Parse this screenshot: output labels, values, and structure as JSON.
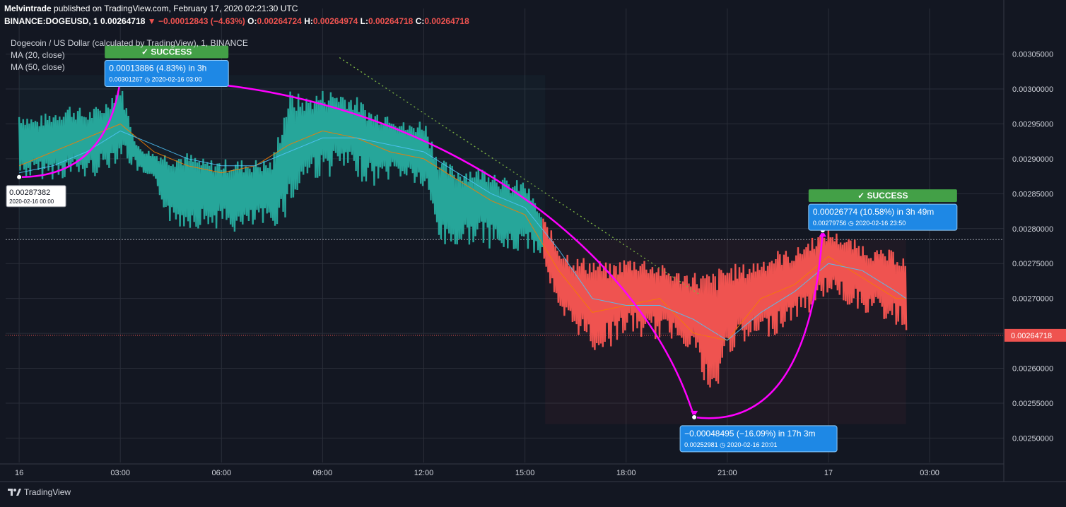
{
  "header": {
    "author": "Melvintrade",
    "published_text": "published on TradingView.com, February 17, 2020 02:21:30 UTC"
  },
  "ohlc": {
    "symbol": "BINANCE:DOGEUSD, 1",
    "last": "0.00264718",
    "change": "▼ −0.00012843 (−4.63%)",
    "o_label": "O:",
    "o": "0.00264724",
    "h_label": "H:",
    "h": "0.00264974",
    "l_label": "L:",
    "l": "0.00264718",
    "c_label": "C:",
    "c": "0.00264718"
  },
  "legend": {
    "title": "Dogecoin / US Dollar (calculated by TradingView), 1, BINANCE",
    "ma20": "MA (20, close)",
    "ma50": "MA (50, close)"
  },
  "footer": {
    "brand": "TradingView"
  },
  "colors": {
    "background": "#131722",
    "up": "#26a69a",
    "down": "#ef5350",
    "ma20": "#f57c00",
    "ma50": "#4fc3f7",
    "projection": "#ff00ff",
    "label_blue": "#1e88e5",
    "success_green": "#43a047"
  },
  "chart_data": {
    "type": "area",
    "title": "Dogecoin / US Dollar (calculated by TradingView), 1, BINANCE",
    "xlabel": "",
    "ylabel": "",
    "x_ticks": [
      "16",
      "03:00",
      "06:00",
      "09:00",
      "12:00",
      "15:00",
      "18:00",
      "21:00",
      "17",
      "03:00"
    ],
    "x_tick_hours": [
      0,
      3,
      6,
      9,
      12,
      15,
      18,
      21,
      24,
      27
    ],
    "xlim": [
      -0.4,
      29.2
    ],
    "y_ticks": [
      "0.00250000",
      "0.00255000",
      "0.00260000",
      "0.00265000",
      "0.00270000",
      "0.00275000",
      "0.00280000",
      "0.00285000",
      "0.00290000",
      "0.00295000",
      "0.00300000",
      "0.00305000"
    ],
    "ylim": [
      0.002465,
      0.003085
    ],
    "last_price_label": "0.00264718",
    "last_price": 0.00264718,
    "baseline": 0.0027844,
    "grid": true,
    "series": [
      {
        "name": "DOGEUSD",
        "hours": [
          0,
          0.5,
          1,
          1.5,
          2,
          2.5,
          3,
          3.5,
          4,
          4.5,
          5,
          5.5,
          6,
          6.5,
          7,
          7.5,
          8,
          8.5,
          9,
          9.5,
          10,
          10.5,
          11,
          11.5,
          12,
          12.5,
          13,
          13.5,
          14,
          14.5,
          15,
          15.5,
          16,
          16.5,
          17,
          17.5,
          18,
          18.5,
          19,
          19.5,
          20,
          20.5,
          21,
          21.5,
          22,
          22.5,
          23,
          23.5,
          24,
          24.5,
          25,
          25.5,
          26,
          26.3
        ],
        "high": [
          0.00297,
          0.00296,
          0.00297,
          0.00298,
          0.00297,
          0.00298,
          0.00301,
          0.00292,
          0.00291,
          0.00291,
          0.00291,
          0.0029,
          0.0029,
          0.0029,
          0.0029,
          0.0029,
          0.003,
          0.00299,
          0.003,
          0.003,
          0.00299,
          0.00297,
          0.00297,
          0.00295,
          0.00296,
          0.0029,
          0.00289,
          0.00289,
          0.00289,
          0.00287,
          0.00287,
          0.00282,
          0.00278,
          0.00276,
          0.00276,
          0.00275,
          0.00276,
          0.00276,
          0.00275,
          0.00274,
          0.00274,
          0.00274,
          0.00275,
          0.00275,
          0.00276,
          0.00277,
          0.00277,
          0.00279,
          0.0028,
          0.00279,
          0.00278,
          0.00277,
          0.00277,
          0.00276
        ],
        "low": [
          0.00287,
          0.00287,
          0.00287,
          0.00287,
          0.00287,
          0.00288,
          0.0029,
          0.00288,
          0.00286,
          0.0028,
          0.0028,
          0.0028,
          0.0028,
          0.00279,
          0.0028,
          0.0028,
          0.00282,
          0.00287,
          0.00287,
          0.00288,
          0.00287,
          0.00286,
          0.00287,
          0.00287,
          0.00285,
          0.00277,
          0.00277,
          0.00278,
          0.00277,
          0.00276,
          0.00277,
          0.00276,
          0.00266,
          0.00265,
          0.00262,
          0.00263,
          0.00265,
          0.00264,
          0.00264,
          0.00264,
          0.00262,
          0.00253,
          0.00262,
          0.00263,
          0.00264,
          0.00265,
          0.00267,
          0.00268,
          0.00271,
          0.00269,
          0.00268,
          0.00267,
          0.00266,
          0.00265
        ]
      },
      {
        "name": "MA (20, close)",
        "hours": [
          0,
          1,
          2,
          3,
          4,
          5,
          6,
          7,
          8,
          9,
          10,
          11,
          12,
          13,
          14,
          15,
          16,
          17,
          18,
          19,
          20,
          21,
          22,
          23,
          24,
          25,
          26,
          26.3
        ],
        "values": [
          0.00289,
          0.00291,
          0.00293,
          0.00295,
          0.00291,
          0.00289,
          0.00288,
          0.00289,
          0.00292,
          0.00294,
          0.00293,
          0.00291,
          0.0029,
          0.00287,
          0.00284,
          0.00282,
          0.00274,
          0.00268,
          0.00269,
          0.0027,
          0.00265,
          0.00264,
          0.0027,
          0.00272,
          0.00276,
          0.00273,
          0.0027,
          0.0027
        ]
      },
      {
        "name": "MA (50, close)",
        "hours": [
          0,
          1,
          2,
          3,
          4,
          5,
          6,
          7,
          8,
          9,
          10,
          11,
          12,
          13,
          14,
          15,
          16,
          17,
          18,
          19,
          20,
          21,
          22,
          23,
          24,
          25,
          26,
          26.3
        ],
        "values": [
          0.00288,
          0.00289,
          0.00291,
          0.00294,
          0.00292,
          0.0029,
          0.00289,
          0.00289,
          0.00291,
          0.00293,
          0.00293,
          0.00292,
          0.00291,
          0.00288,
          0.00285,
          0.00283,
          0.00277,
          0.0027,
          0.00269,
          0.00269,
          0.00267,
          0.00264,
          0.00268,
          0.00271,
          0.00275,
          0.00274,
          0.00271,
          0.0027
        ]
      }
    ],
    "annotations": [
      {
        "id": "start",
        "lines": [
          "0.00287382",
          "2020-02-16 00:00"
        ],
        "hour": 0,
        "price": 0.00287382,
        "style": "plain"
      },
      {
        "id": "move1",
        "badge": "✓ SUCCESS",
        "lines": [
          "0.00013886 (4.83%) in 3h",
          "0.00301267 ◷ 2020-02-16  03:00"
        ],
        "hour": 3,
        "price": 0.00301267,
        "style": "blue"
      },
      {
        "id": "move2",
        "lines": [
          "−0.00048495 (−16.09%) in 17h 3m",
          "0.00252981 ◷ 2020-02-16  20:01"
        ],
        "hour": 20.02,
        "price": 0.00252981,
        "style": "blue"
      },
      {
        "id": "move3",
        "badge": "✓ SUCCESS",
        "lines": [
          "0.00026774 (10.58%) in 3h 49m",
          "0.00279756 ◷ 2020-02-16  23:50"
        ],
        "hour": 23.83,
        "price": 0.00279756,
        "style": "blue"
      }
    ],
    "projection_path": [
      {
        "hour": 0,
        "price": 0.00287382
      },
      {
        "hour": 3,
        "price": 0.00301267
      },
      {
        "hour": 20.02,
        "price": 0.00252981
      },
      {
        "hour": 23.83,
        "price": 0.00279756
      }
    ],
    "trend_line": [
      {
        "hour": 9.5,
        "price": 0.003045
      },
      {
        "hour": 20.2,
        "price": 0.002705
      }
    ]
  }
}
